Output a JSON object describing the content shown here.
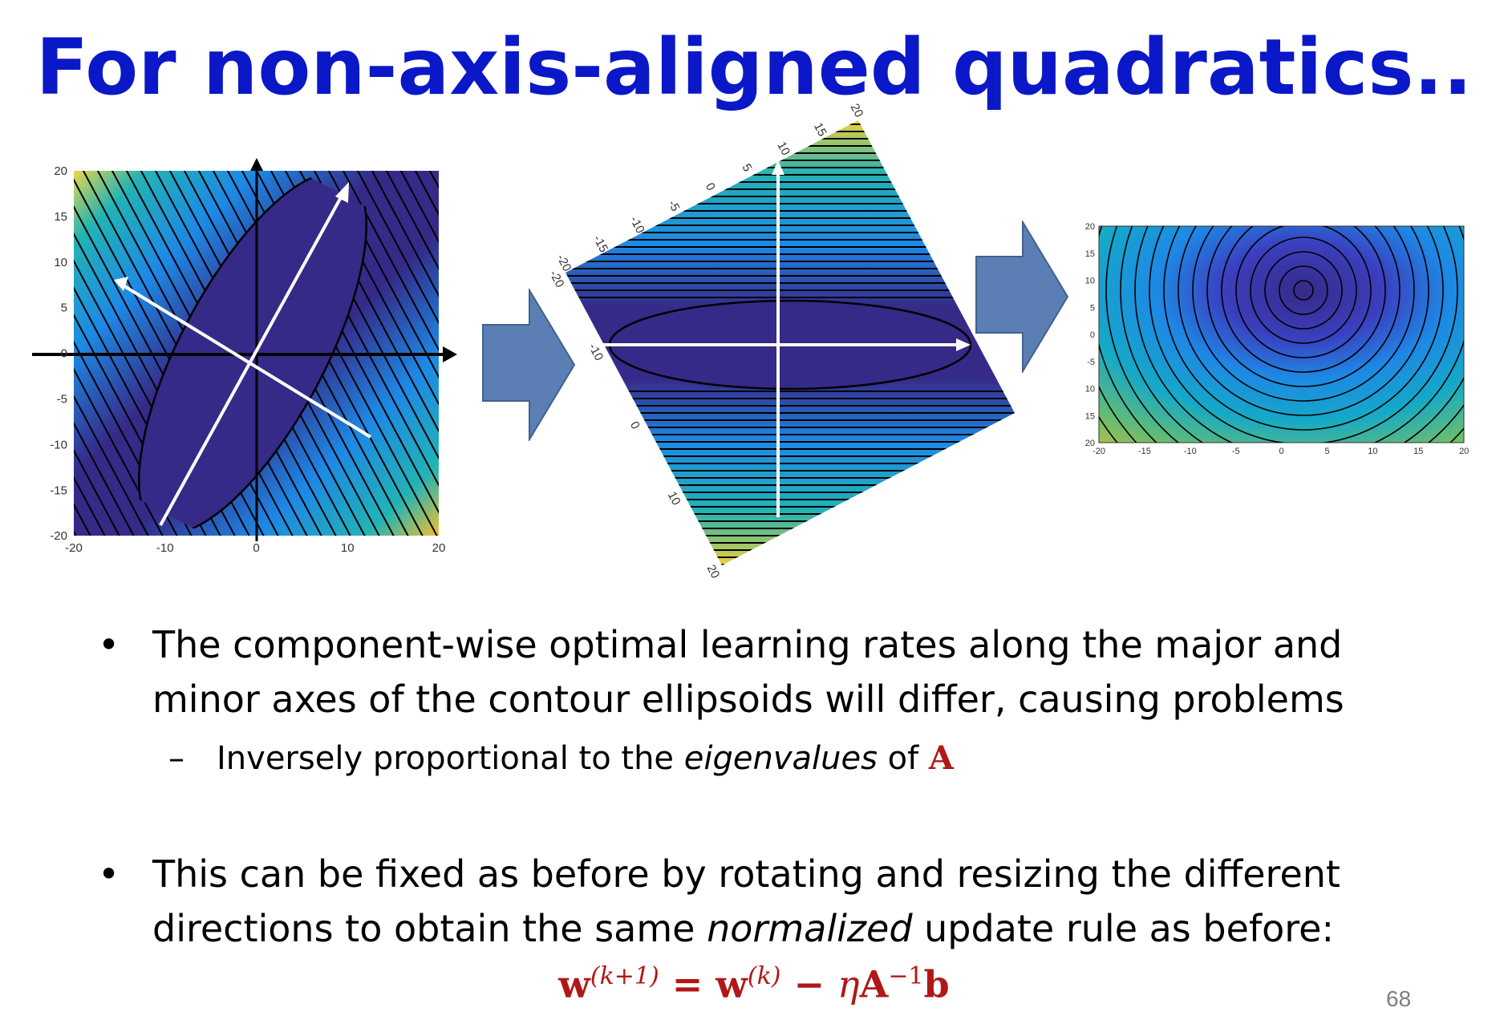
{
  "title": "For non-axis-aligned quadratics..",
  "colors": {
    "title": "#0a18c8",
    "math": "#b01818",
    "arrow_block": "#5b7fb4",
    "contour_low": "#352a87",
    "contour_mid": "#1e88e5",
    "contour_high": "#f9fb0e"
  },
  "fig1": {
    "xticks": [
      "-20",
      "-10",
      "0",
      "10",
      "20"
    ],
    "yticks": [
      "20",
      "15",
      "10",
      "5",
      "0",
      "-5",
      "-10",
      "-15",
      "-20"
    ]
  },
  "fig2": {
    "ticks_top": [
      "-20",
      "-15",
      "-10",
      "-5",
      "0",
      "5",
      "10",
      "15",
      "20"
    ],
    "ticks_left": [
      "-20",
      "-10",
      "0",
      "10",
      "20"
    ]
  },
  "fig3": {
    "xticks": [
      "-20",
      "-15",
      "-10",
      "-5",
      "0",
      "5",
      "10",
      "15",
      "20"
    ],
    "yticks": [
      "20",
      "15",
      "10",
      "5",
      "0",
      "-5",
      "10",
      "15",
      "20"
    ]
  },
  "bullet1": {
    "text": "The component-wise optimal learning rates along the major and minor axes of the contour ellipsoids will differ, causing problems"
  },
  "sub1": {
    "pre": "Inversely proportional to the ",
    "em": "eigenvalues",
    "mid": " of ",
    "mat": "A"
  },
  "bullet2": {
    "pre": "This can be fixed as before by rotating and resizing the different directions to obtain the same ",
    "em": "normalized",
    "post": " update rule as before:"
  },
  "equation": {
    "w1": "w",
    "sup1": "(k+1)",
    "eq": " = ",
    "w2": "w",
    "sup2": "(k)",
    "minus": " − ",
    "eta": "η",
    "A": "A",
    "supA": "−1",
    "b": "b"
  },
  "page_number": "68",
  "bullet_char": "•",
  "dash_char": "–"
}
